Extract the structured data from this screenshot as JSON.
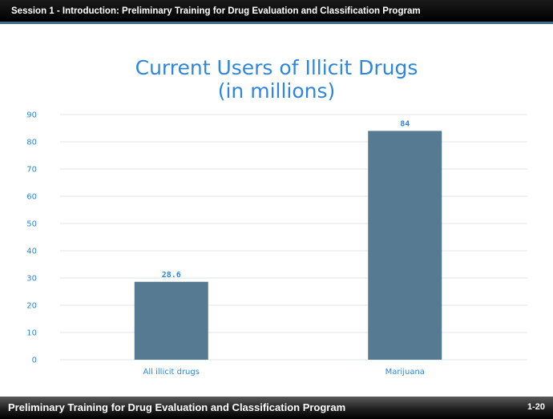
{
  "header": {
    "title": "Session 1 - Introduction: Preliminary Training for Drug Evaluation and Classification Program"
  },
  "footer": {
    "title": "Preliminary Training for Drug Evaluation and Classification Program",
    "page": "1-20"
  },
  "chart_data": {
    "type": "bar",
    "title_lines": [
      "Current Users of Illicit Drugs",
      "(in millions)"
    ],
    "categories": [
      "All illicit drugs",
      "Marijuana"
    ],
    "values": [
      28.6,
      84
    ],
    "value_labels": [
      "28.6",
      "84"
    ],
    "ylim": [
      0,
      90
    ],
    "yticks": [
      0,
      10,
      20,
      30,
      40,
      50,
      60,
      70,
      80,
      90
    ],
    "grid": true,
    "bar_color": "#557a91",
    "label_color": "#2e86de",
    "title_color": "#2e86de"
  }
}
